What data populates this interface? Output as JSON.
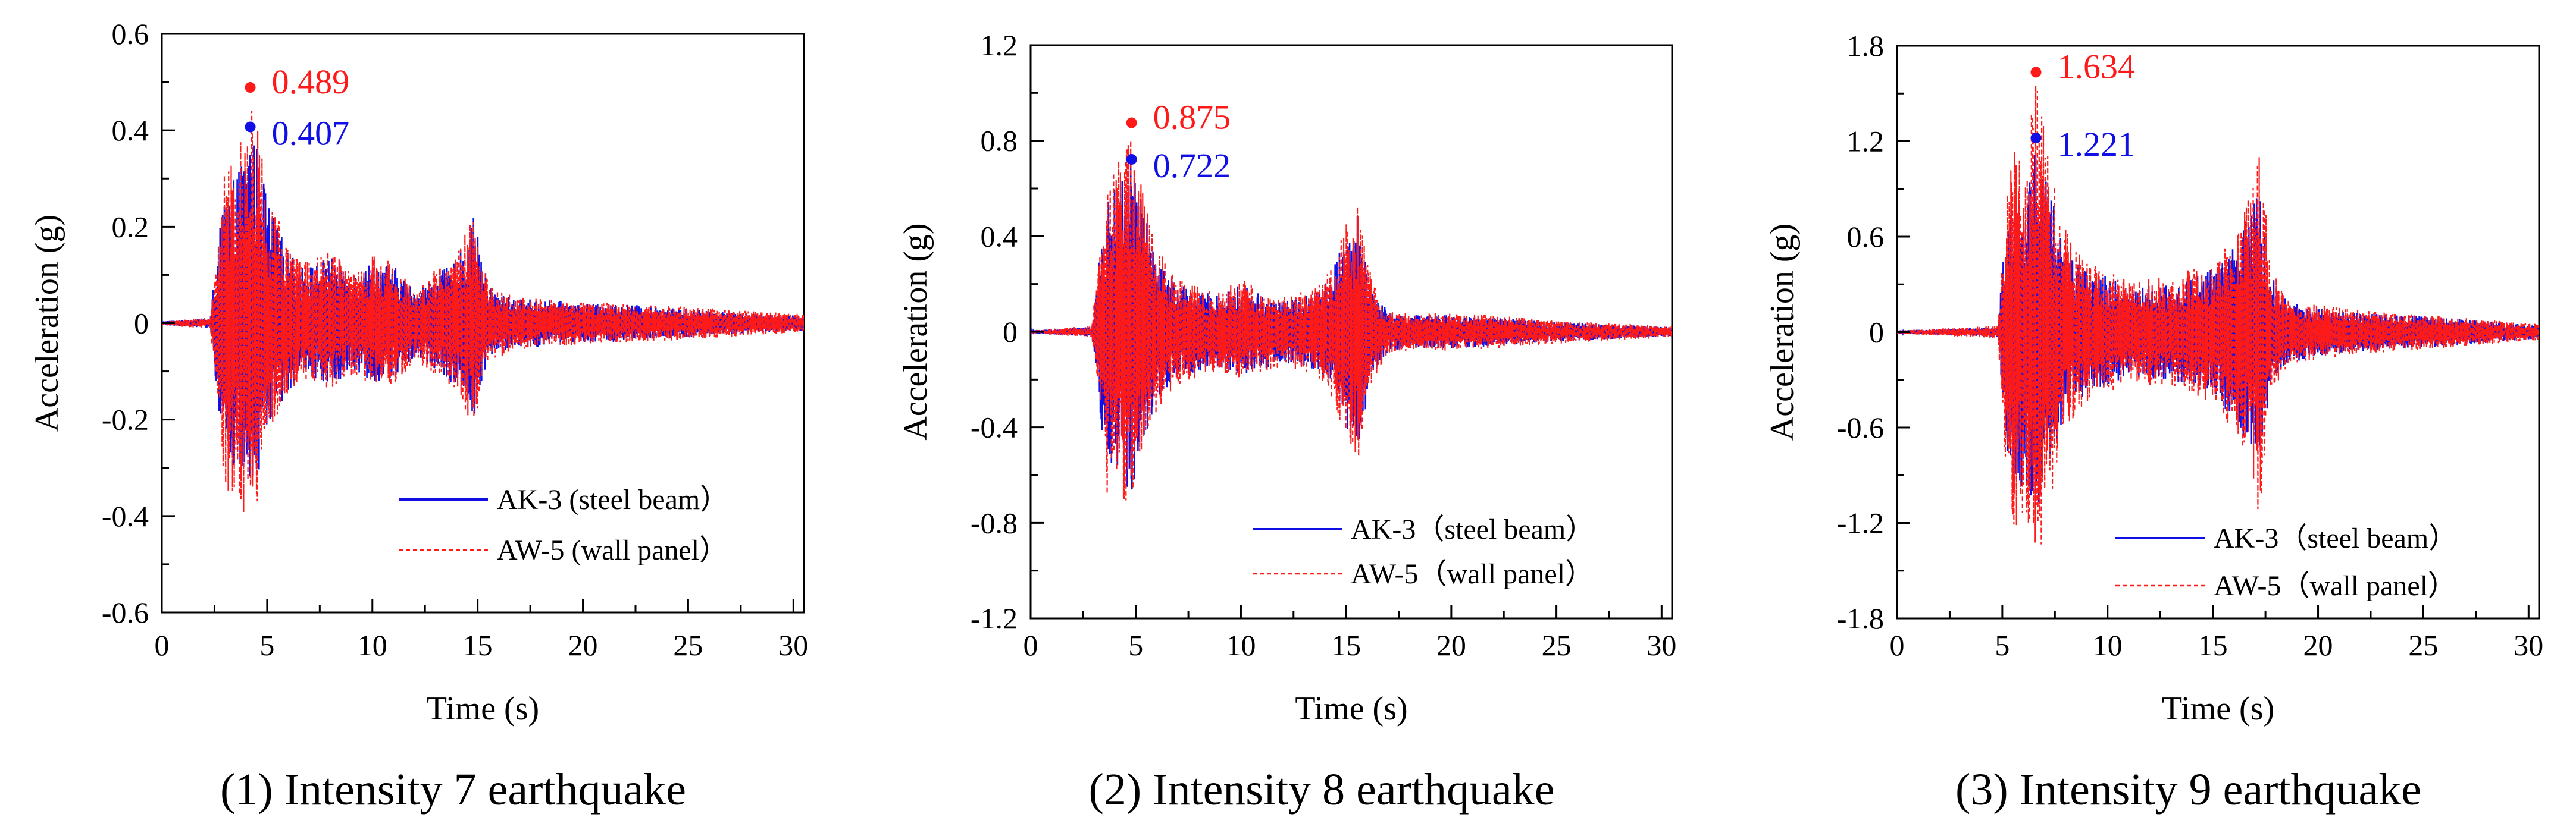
{
  "colors": {
    "steel": "#1010e6",
    "wall": "#ff1a1a",
    "axis": "#000000"
  },
  "chart_data": [
    {
      "type": "line",
      "caption": "(1) Intensity 7 earthquake",
      "xlabel": "Time (s)",
      "ylabel": "Acceleration (g)",
      "xlim": [
        0,
        30.5
      ],
      "ylim": [
        -0.6,
        0.6
      ],
      "x_ticks": [
        0,
        5,
        10,
        15,
        20,
        25,
        30
      ],
      "y_ticks": [
        -0.6,
        -0.4,
        -0.2,
        0,
        0.2,
        0.4,
        0.6
      ],
      "y_tick_labels": [
        "-0.6",
        "-0.4",
        "-0.2",
        "0",
        "0.2",
        "0.4",
        "0.6"
      ],
      "legend_position": "bottom-right",
      "series": [
        {
          "name": "AK-3 (steel beam）",
          "style": "solid",
          "peak": {
            "x": 4.2,
            "y": 0.407,
            "label": "0.407"
          },
          "envelope": {
            "t": [
              0,
              2.3,
              2.6,
              3.0,
              3.5,
              4.2,
              4.6,
              5.0,
              5.5,
              6.0,
              6.5,
              7.0,
              8.0,
              9.0,
              10.0,
              11.0,
              12.0,
              13.0,
              14.0,
              14.8,
              15.5,
              16.0,
              17.0,
              18.0,
              20.0,
              22.0,
              25.0,
              28.0,
              30.5
            ],
            "pos": [
              0.004,
              0.01,
              0.14,
              0.28,
              0.3,
              0.407,
              0.36,
              0.26,
              0.2,
              0.15,
              0.12,
              0.12,
              0.14,
              0.1,
              0.13,
              0.12,
              0.07,
              0.1,
              0.13,
              0.22,
              0.08,
              0.06,
              0.05,
              0.05,
              0.04,
              0.04,
              0.03,
              0.02,
              0.015
            ],
            "neg": [
              0.004,
              0.01,
              0.14,
              0.33,
              0.3,
              0.37,
              0.33,
              0.22,
              0.18,
              0.14,
              0.12,
              0.11,
              0.13,
              0.1,
              0.12,
              0.12,
              0.07,
              0.1,
              0.13,
              0.2,
              0.08,
              0.06,
              0.05,
              0.05,
              0.04,
              0.04,
              0.03,
              0.02,
              0.015
            ]
          }
        },
        {
          "name": "AW-5 (wall panel）",
          "style": "dashed",
          "peak": {
            "x": 4.2,
            "y": 0.489,
            "label": "0.489"
          },
          "envelope": {
            "t": [
              0,
              2.3,
              2.6,
              3.0,
              3.5,
              4.2,
              4.6,
              5.0,
              5.5,
              6.0,
              6.5,
              7.0,
              8.0,
              9.0,
              10.0,
              11.0,
              12.0,
              13.0,
              14.0,
              14.8,
              15.5,
              16.0,
              17.0,
              18.0,
              20.0,
              22.0,
              25.0,
              28.0,
              30.5
            ],
            "pos": [
              0.004,
              0.012,
              0.16,
              0.32,
              0.35,
              0.489,
              0.4,
              0.28,
              0.22,
              0.16,
              0.13,
              0.13,
              0.15,
              0.11,
              0.14,
              0.13,
              0.08,
              0.11,
              0.14,
              0.23,
              0.09,
              0.07,
              0.055,
              0.05,
              0.045,
              0.04,
              0.035,
              0.025,
              0.02
            ],
            "neg": [
              0.004,
              0.012,
              0.16,
              0.38,
              0.34,
              0.44,
              0.36,
              0.24,
              0.2,
              0.15,
              0.13,
              0.12,
              0.14,
              0.11,
              0.13,
              0.13,
              0.08,
              0.11,
              0.14,
              0.22,
              0.09,
              0.07,
              0.055,
              0.05,
              0.045,
              0.04,
              0.035,
              0.025,
              0.02
            ]
          }
        }
      ]
    },
    {
      "type": "line",
      "caption": "(2) Intensity 8 earthquake",
      "xlabel": "Time (s)",
      "ylabel": "Acceleration (g)",
      "xlim": [
        0,
        30.5
      ],
      "ylim": [
        -1.2,
        1.2
      ],
      "x_ticks": [
        0,
        5,
        10,
        15,
        20,
        25,
        30
      ],
      "y_ticks": [
        -1.2,
        -0.8,
        -0.4,
        0,
        0.4,
        0.8,
        1.2
      ],
      "y_tick_labels": [
        "-1.2",
        "-0.8",
        "-0.4",
        "0",
        "0.4",
        "0.8",
        "1.2"
      ],
      "legend_position": "bottom-right",
      "series": [
        {
          "name": "AK-3（steel beam）",
          "style": "solid",
          "peak": {
            "x": 4.8,
            "y": 0.722,
            "label": "0.722"
          },
          "envelope": {
            "t": [
              0,
              2.9,
              3.2,
              3.6,
              4.0,
              4.8,
              5.3,
              5.8,
              6.5,
              7.0,
              8.0,
              9.0,
              10.0,
              11.0,
              12.0,
              13.0,
              14.0,
              15.0,
              15.6,
              16.2,
              17.0,
              18.0,
              20.0,
              22.0,
              25.0,
              28.0,
              30.5
            ],
            "pos": [
              0.006,
              0.02,
              0.25,
              0.55,
              0.6,
              0.722,
              0.55,
              0.36,
              0.25,
              0.2,
              0.17,
              0.15,
              0.2,
              0.16,
              0.13,
              0.15,
              0.2,
              0.4,
              0.5,
              0.2,
              0.08,
              0.07,
              0.07,
              0.06,
              0.04,
              0.03,
              0.02
            ],
            "neg": [
              0.006,
              0.02,
              0.25,
              0.6,
              0.55,
              0.7,
              0.5,
              0.34,
              0.24,
              0.2,
              0.17,
              0.15,
              0.18,
              0.16,
              0.13,
              0.15,
              0.2,
              0.4,
              0.48,
              0.2,
              0.08,
              0.07,
              0.07,
              0.06,
              0.04,
              0.03,
              0.02
            ]
          }
        },
        {
          "name": "AW-5（wall panel）",
          "style": "dashed",
          "peak": {
            "x": 4.8,
            "y": 0.875,
            "label": "0.875"
          },
          "envelope": {
            "t": [
              0,
              2.9,
              3.2,
              3.6,
              4.0,
              4.8,
              5.3,
              5.8,
              6.5,
              7.0,
              8.0,
              9.0,
              10.0,
              11.0,
              12.0,
              13.0,
              14.0,
              15.0,
              15.6,
              16.2,
              17.0,
              18.0,
              20.0,
              22.0,
              25.0,
              28.0,
              30.5
            ],
            "pos": [
              0.006,
              0.025,
              0.28,
              0.62,
              0.68,
              0.875,
              0.62,
              0.4,
              0.28,
              0.22,
              0.19,
              0.17,
              0.22,
              0.18,
              0.15,
              0.17,
              0.22,
              0.45,
              0.55,
              0.22,
              0.09,
              0.08,
              0.08,
              0.07,
              0.05,
              0.035,
              0.025
            ],
            "neg": [
              0.006,
              0.025,
              0.28,
              0.72,
              0.62,
              0.78,
              0.58,
              0.38,
              0.27,
              0.22,
              0.19,
              0.17,
              0.2,
              0.18,
              0.15,
              0.17,
              0.22,
              0.45,
              0.56,
              0.22,
              0.09,
              0.08,
              0.08,
              0.07,
              0.05,
              0.035,
              0.025
            ]
          }
        }
      ]
    },
    {
      "type": "line",
      "caption": "(3) Intensity 9 earthquake",
      "xlabel": "Time (s)",
      "ylabel": "Acceleration (g)",
      "xlim": [
        0,
        30.5
      ],
      "ylim": [
        -1.8,
        1.8
      ],
      "x_ticks": [
        0,
        5,
        10,
        15,
        20,
        25,
        30
      ],
      "y_ticks": [
        -1.8,
        -1.2,
        -0.6,
        0,
        0.6,
        1.2,
        1.8
      ],
      "y_tick_labels": [
        "-1.8",
        "-1.2",
        "-0.6",
        "0",
        "0.6",
        "1.2",
        "1.8"
      ],
      "legend_position": "bottom-right",
      "series": [
        {
          "name": "AK-3（steel beam）",
          "style": "solid",
          "peak": {
            "x": 6.6,
            "y": 1.221,
            "label": "1.221"
          },
          "envelope": {
            "t": [
              0,
              4.8,
              5.1,
              5.5,
              6.0,
              6.6,
              7.2,
              7.8,
              8.5,
              9.0,
              10.0,
              11.0,
              12.0,
              13.0,
              14.0,
              15.0,
              16.0,
              16.6,
              17.2,
              17.8,
              18.5,
              20.0,
              22.0,
              25.0,
              28.0,
              30.5
            ],
            "pos": [
              0.01,
              0.03,
              0.6,
              1.0,
              0.9,
              1.221,
              0.95,
              0.62,
              0.45,
              0.4,
              0.35,
              0.28,
              0.3,
              0.3,
              0.35,
              0.4,
              0.55,
              0.7,
              0.9,
              0.35,
              0.2,
              0.15,
              0.12,
              0.1,
              0.07,
              0.04
            ],
            "neg": [
              0.01,
              0.03,
              0.65,
              1.05,
              0.95,
              1.15,
              0.9,
              0.58,
              0.43,
              0.4,
              0.34,
              0.28,
              0.3,
              0.3,
              0.34,
              0.4,
              0.55,
              0.7,
              0.85,
              0.33,
              0.2,
              0.15,
              0.12,
              0.1,
              0.07,
              0.04
            ]
          }
        },
        {
          "name": "AW-5（wall panel）",
          "style": "dashed",
          "peak": {
            "x": 6.6,
            "y": 1.634,
            "label": "1.634"
          },
          "envelope": {
            "t": [
              0,
              4.8,
              5.1,
              5.5,
              6.0,
              6.6,
              7.2,
              7.8,
              8.5,
              9.0,
              10.0,
              11.0,
              12.0,
              13.0,
              14.0,
              15.0,
              16.0,
              16.6,
              17.2,
              17.8,
              18.5,
              20.0,
              22.0,
              25.0,
              28.0,
              30.5
            ],
            "pos": [
              0.01,
              0.04,
              0.7,
              1.18,
              1.05,
              1.634,
              1.1,
              0.7,
              0.52,
              0.45,
              0.4,
              0.32,
              0.34,
              0.34,
              0.4,
              0.46,
              0.62,
              0.8,
              1.15,
              0.4,
              0.22,
              0.17,
              0.14,
              0.11,
              0.08,
              0.05
            ],
            "neg": [
              0.01,
              0.04,
              0.78,
              1.3,
              1.15,
              1.5,
              1.15,
              0.7,
              0.52,
              0.45,
              0.4,
              0.32,
              0.34,
              0.34,
              0.4,
              0.46,
              0.62,
              0.8,
              1.2,
              0.4,
              0.22,
              0.17,
              0.14,
              0.11,
              0.08,
              0.05
            ]
          }
        }
      ]
    }
  ]
}
